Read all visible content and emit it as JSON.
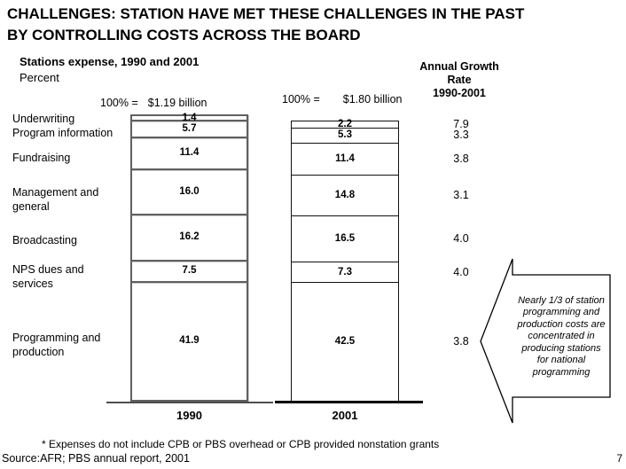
{
  "slide": {
    "title_lines": [
      "CHALLENGES: STATION HAVE MET THESE CHALLENGES IN THE PAST",
      "BY CONTROLLING COSTS ACROSS THE BOARD"
    ],
    "footnote": "* Expenses do not include CPB or PBS overhead or CPB provided nonstation grants",
    "source": "Source:AFR; PBS annual report, 2001",
    "page_number": "7"
  },
  "chart_data": {
    "type": "bar",
    "stacked": true,
    "orientation": "vertical",
    "title": "Stations expense, 1990 and 2001",
    "unit_label": "Percent",
    "categories": [
      "Underwriting",
      "Program information",
      "Fundraising",
      "Management and general",
      "Broadcasting",
      "NPS dues and services",
      "Programming and production"
    ],
    "series": [
      {
        "name": "1990",
        "total_label": "100% =",
        "total_value": "$1.19 billion",
        "values": [
          1.4,
          5.7,
          11.4,
          16.0,
          16.2,
          7.5,
          41.9
        ]
      },
      {
        "name": "2001",
        "total_label": "100% =",
        "total_value": "$1.80 billion",
        "values": [
          2.2,
          5.3,
          11.4,
          14.8,
          16.5,
          7.3,
          42.5
        ]
      }
    ],
    "growth": {
      "header_lines": [
        "Annual Growth",
        "Rate",
        "1990-2001"
      ],
      "values": [
        7.9,
        3.3,
        3.8,
        3.1,
        4.0,
        4.0,
        3.8
      ]
    },
    "ylim": [
      0,
      100
    ],
    "grid": false,
    "legend": "none",
    "callout": "Nearly 1/3 of station programming and production costs are concentrated in producing stations for national programming"
  }
}
